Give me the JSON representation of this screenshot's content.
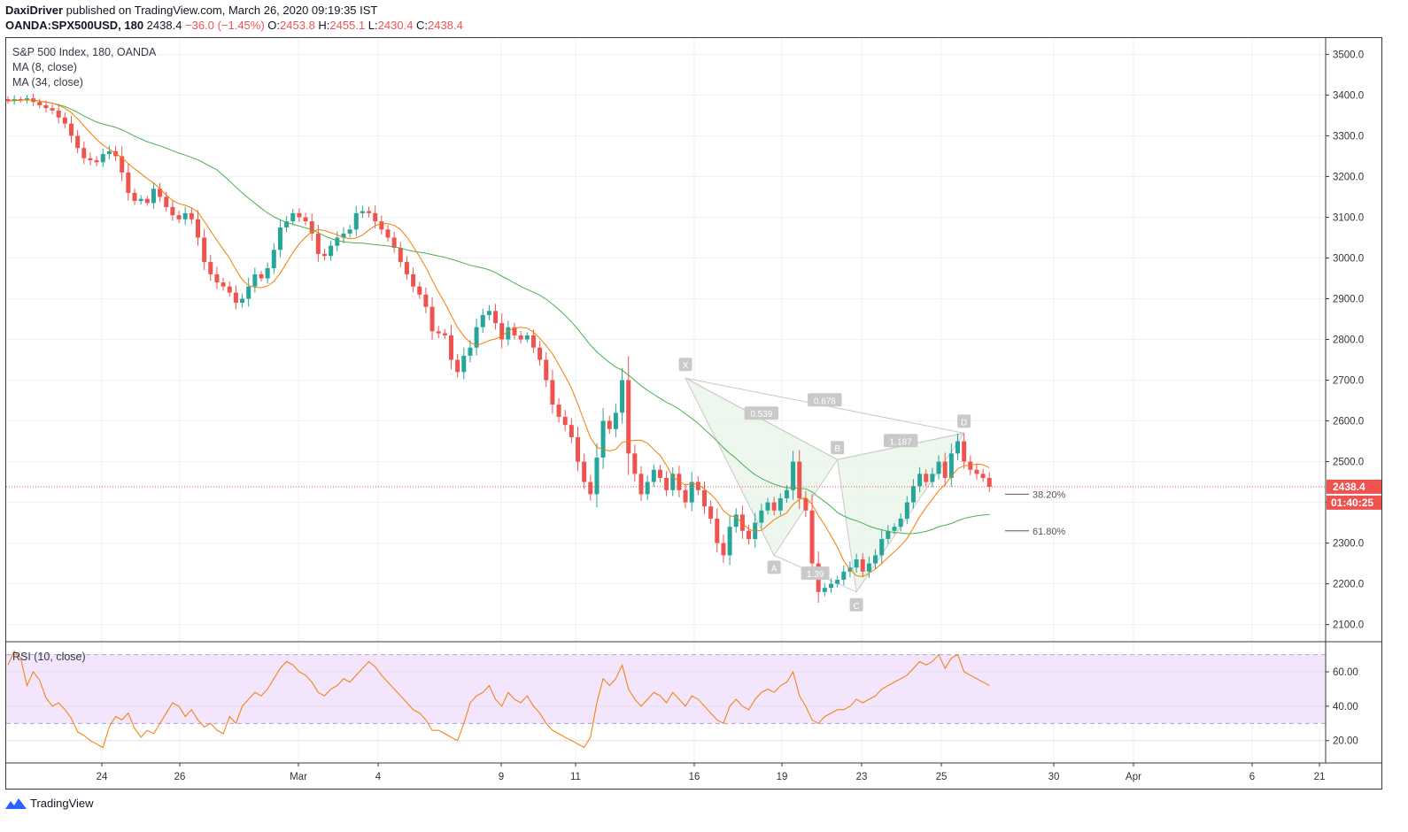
{
  "header": {
    "author": "DaxiDriver",
    "published_text": " published on TradingView.com, March 26, 2020 09:19:35 IST",
    "symbol": "OANDA:SPX500USD, 180",
    "last": " 2438.4 ",
    "change": "−36.0 (−1.45%)",
    "o_label": " O:",
    "o": "2453.8",
    "h_label": " H:",
    "h": "2455.1",
    "l_label": " L:",
    "l": "2430.4",
    "c_label": " C:",
    "c": "2438.4"
  },
  "legend": {
    "title": "S&P 500 Index, 180, OANDA",
    "ma_fast": "MA (8, close)",
    "ma_slow": "MA (34, close)",
    "rsi": "RSI (10, close)"
  },
  "price_tags": {
    "last_price": "2438.4",
    "countdown": "01:40:25"
  },
  "brand": "TradingView",
  "colors": {
    "up": "#26a69a",
    "down": "#ef5350",
    "ma_fast": "#f57c00",
    "ma_slow": "#4caf50",
    "rsi": "#f57c00",
    "rsi_band": "#f3e5fc",
    "grid": "#eef1f5",
    "pattern_fill": "#e8f5e9",
    "pattern_line": "#c8c8c8",
    "label_bg": "#c9c9c9"
  },
  "chart_data": {
    "type": "candlestick",
    "price_axis": {
      "ticks": [
        3500.0,
        3400.0,
        3300.0,
        3200.0,
        3100.0,
        3000.0,
        2900.0,
        2800.0,
        2700.0,
        2600.0,
        2500.0,
        2400.0,
        2300.0,
        2200.0,
        2100.0
      ],
      "ylim": [
        2060,
        3540
      ]
    },
    "time_axis": {
      "ticks": [
        "24",
        "26",
        "Mar",
        "4",
        "9",
        "11",
        "16",
        "19",
        "23",
        "25",
        "30",
        "Apr",
        "6",
        "21"
      ]
    },
    "rsi_axis": {
      "ticks": [
        60.0,
        40.0,
        20.0
      ],
      "ylim": [
        7,
        77
      ],
      "band": [
        30,
        70
      ]
    },
    "close": [
      3385,
      3390,
      3387,
      3392,
      3383,
      3375,
      3368,
      3362,
      3345,
      3330,
      3300,
      3270,
      3245,
      3240,
      3235,
      3255,
      3262,
      3250,
      3210,
      3160,
      3140,
      3145,
      3135,
      3170,
      3150,
      3125,
      3105,
      3095,
      3110,
      3095,
      3050,
      2990,
      2960,
      2940,
      2930,
      2915,
      2890,
      2900,
      2930,
      2960,
      2950,
      2975,
      3020,
      3075,
      3090,
      3110,
      3100,
      3090,
      3060,
      3010,
      3005,
      3030,
      3050,
      3060,
      3070,
      3110,
      3115,
      3110,
      3090,
      3070,
      3050,
      3025,
      2990,
      2960,
      2930,
      2910,
      2880,
      2820,
      2815,
      2810,
      2750,
      2720,
      2760,
      2780,
      2830,
      2860,
      2870,
      2840,
      2800,
      2830,
      2810,
      2800,
      2810,
      2780,
      2750,
      2700,
      2640,
      2610,
      2590,
      2560,
      2500,
      2450,
      2420,
      2510,
      2600,
      2580,
      2620,
      2700,
      2520,
      2470,
      2420,
      2450,
      2480,
      2460,
      2430,
      2470,
      2430,
      2400,
      2450,
      2430,
      2390,
      2360,
      2300,
      2270,
      2340,
      2370,
      2330,
      2310,
      2350,
      2380,
      2400,
      2380,
      2410,
      2430,
      2500,
      2410,
      2380,
      2250,
      2180,
      2190,
      2200,
      2210,
      2230,
      2240,
      2260,
      2230,
      2250,
      2270,
      2310,
      2330,
      2340,
      2360,
      2400,
      2440,
      2470,
      2450,
      2470,
      2500,
      2460,
      2520,
      2550,
      2500,
      2480,
      2470,
      2460,
      2438
    ],
    "rsi": [
      64,
      72,
      68,
      52,
      60,
      55,
      45,
      40,
      42,
      38,
      33,
      25,
      23,
      20,
      18,
      16,
      28,
      34,
      32,
      36,
      27,
      22,
      26,
      24,
      30,
      36,
      42,
      40,
      34,
      38,
      32,
      28,
      30,
      26,
      24,
      34,
      30,
      40,
      44,
      48,
      46,
      50,
      56,
      62,
      66,
      64,
      60,
      58,
      54,
      48,
      46,
      50,
      52,
      56,
      54,
      58,
      62,
      66,
      63,
      58,
      54,
      50,
      46,
      42,
      38,
      36,
      32,
      26,
      26,
      24,
      22,
      20,
      30,
      42,
      46,
      48,
      52,
      44,
      40,
      48,
      44,
      42,
      46,
      40,
      36,
      30,
      26,
      24,
      22,
      20,
      18,
      16,
      22,
      42,
      56,
      52,
      56,
      64,
      50,
      44,
      40,
      44,
      48,
      46,
      42,
      48,
      44,
      40,
      46,
      44,
      40,
      36,
      32,
      30,
      40,
      44,
      40,
      38,
      44,
      48,
      50,
      48,
      52,
      54,
      60,
      46,
      40,
      32,
      30,
      34,
      36,
      38,
      38,
      40,
      44,
      42,
      44,
      46,
      50,
      52,
      54,
      56,
      58,
      62,
      66,
      64,
      66,
      70,
      62,
      68,
      70,
      60,
      58,
      56,
      54,
      52
    ],
    "harmonic_pattern": {
      "points": {
        "X": 2705,
        "A": 2270,
        "B": 2505,
        "C": 2180,
        "D": 2570
      },
      "ratios": [
        "0.539",
        "0.678",
        "1.187",
        "1.39"
      ]
    },
    "levels": [
      {
        "label": "38.20%",
        "value": 2420
      },
      {
        "label": "61.80%",
        "value": 2330
      }
    ],
    "last_price": 2438.4
  }
}
